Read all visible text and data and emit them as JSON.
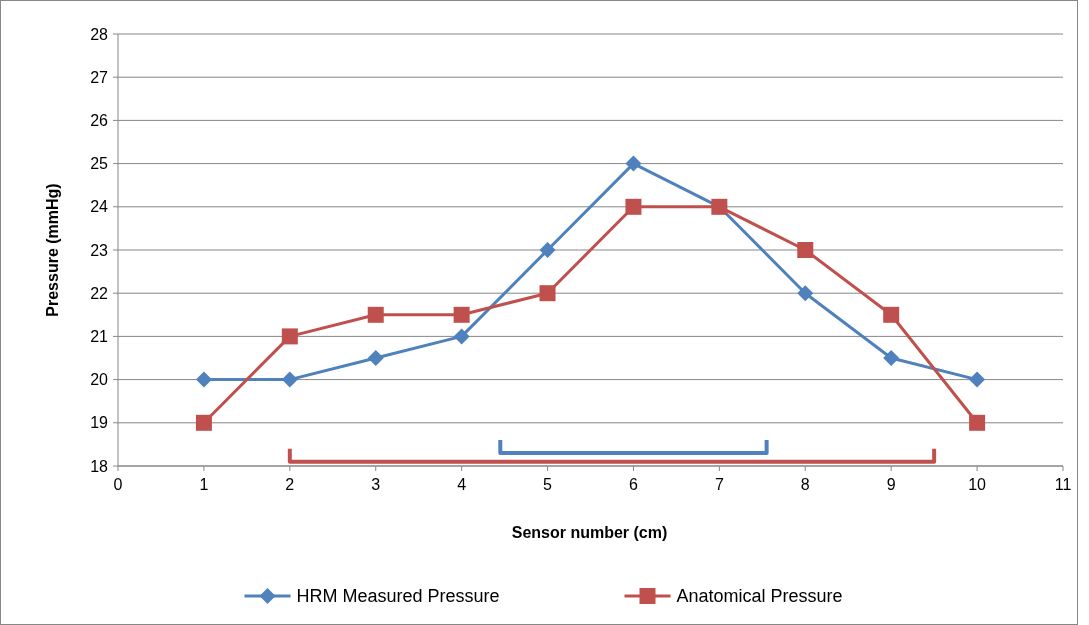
{
  "chart_data": {
    "type": "line",
    "xlabel": "Sensor number (cm)",
    "ylabel": "Pressure (mmHg)",
    "x": [
      1,
      2,
      3,
      4,
      5,
      6,
      7,
      8,
      9,
      10
    ],
    "series": [
      {
        "name": "HRM Measured Pressure",
        "color": "#4f81bd",
        "marker": "diamond",
        "values": [
          20,
          20,
          20.5,
          21,
          23,
          25,
          24,
          22,
          20.5,
          20
        ]
      },
      {
        "name": "Anatomical Pressure",
        "color": "#c0504d",
        "marker": "square",
        "values": [
          19,
          21,
          21.5,
          21.5,
          22,
          24,
          24,
          23,
          21.5,
          19
        ]
      },
      {
        "type": "line",
        "color": "#4f81bd",
        "marker": "none",
        "x": [
          4.45,
          4.45,
          7.55,
          7.55
        ],
        "values": [
          18.6,
          18.3,
          18.3,
          18.6
        ]
      },
      {
        "type": "line",
        "color": "#c0504d",
        "marker": "none",
        "x": [
          2,
          2,
          9.5,
          9.5
        ],
        "values": [
          18.4,
          18.1,
          18.1,
          18.4
        ]
      }
    ],
    "xlim": [
      0,
      11
    ],
    "xticks": [
      0,
      1,
      2,
      3,
      4,
      5,
      6,
      7,
      8,
      9,
      10,
      11
    ],
    "ylim": [
      18,
      28
    ],
    "yticks": [
      18,
      19,
      20,
      21,
      22,
      23,
      24,
      25,
      26,
      27,
      28
    ],
    "grid": "y",
    "legend": "bottom",
    "line_style": "solid"
  }
}
